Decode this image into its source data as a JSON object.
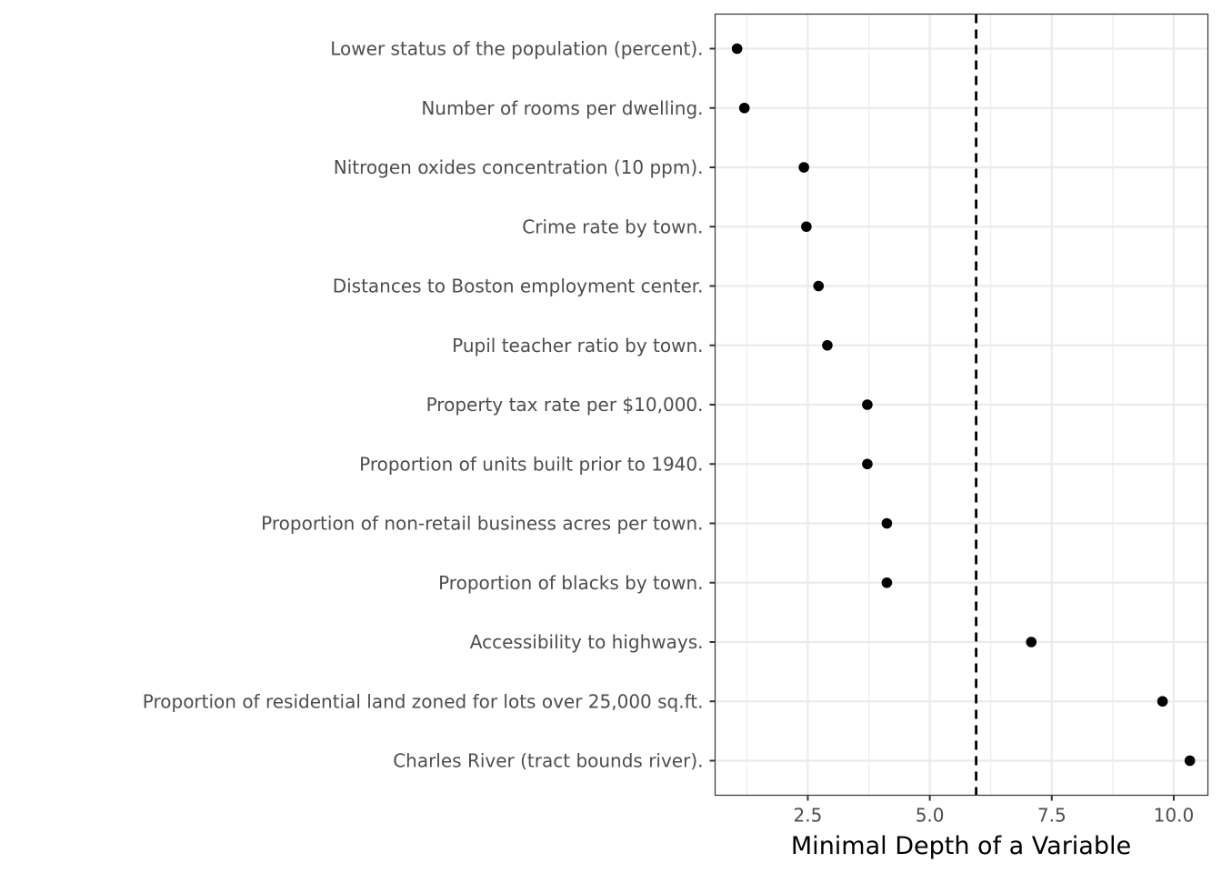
{
  "chart_data": {
    "type": "scatter",
    "title": "",
    "xlabel": "Minimal Depth of a Variable",
    "ylabel": "",
    "xlim": [
      0.6,
      10.7
    ],
    "xticks": [
      2.5,
      5.0,
      7.5,
      10.0
    ],
    "xtick_labels": [
      "2.5",
      "5.0",
      "7.5",
      "10.0"
    ],
    "grid": true,
    "legend": "none",
    "threshold_line": {
      "value": 5.95,
      "style": "dashed",
      "orientation": "vertical"
    },
    "categories": [
      "Lower status of the population (percent).",
      "Number of rooms per dwelling.",
      "Nitrogen oxides concentration (10 ppm).",
      "Crime rate by town.",
      "Distances to Boston employment center.",
      "Pupil teacher ratio by town.",
      "Property tax rate per $10,000.",
      "Proportion of units built prior to 1940.",
      "Proportion of non-retail business acres per town.",
      "Proportion of blacks by town.",
      "Accessibility to highways.",
      "Proportion of residential land zoned for lots over 25,000 sq.ft.",
      "Charles River (tract bounds river)."
    ],
    "values": [
      1.05,
      1.2,
      2.42,
      2.47,
      2.72,
      2.9,
      3.72,
      3.72,
      4.12,
      4.12,
      7.08,
      9.77,
      10.33
    ],
    "colors": {
      "point": "#000000",
      "grid": "#ebebeb",
      "panel_border": "#333333",
      "threshold": "#000000"
    }
  }
}
